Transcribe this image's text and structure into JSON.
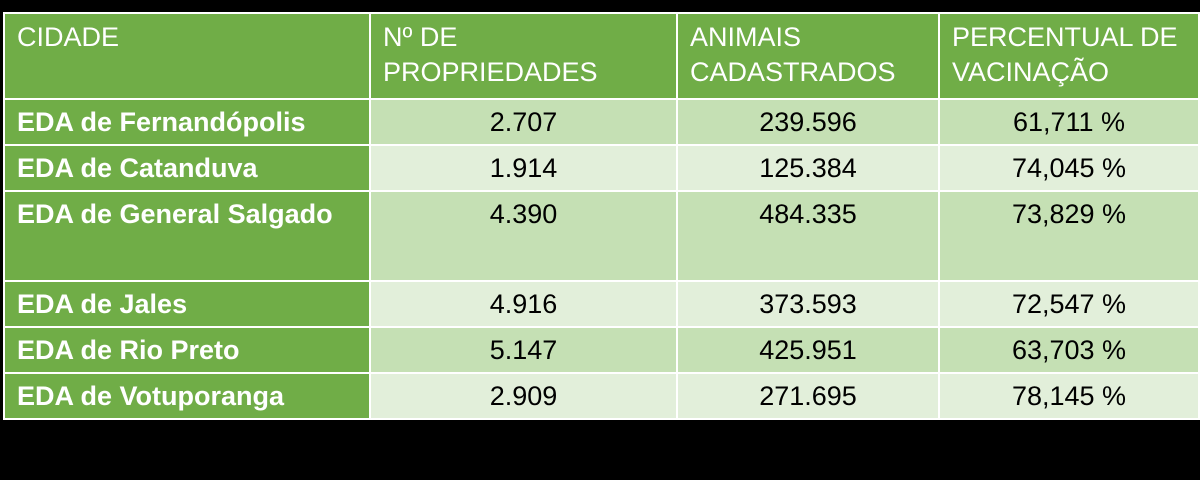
{
  "table": {
    "headers": {
      "city": "CIDADE",
      "properties": "Nº DE PROPRIEDADES",
      "animals": "ANIMAIS CADASTRADOS",
      "vaccination": "PERCENTUAL DE VACINAÇÃO"
    },
    "rows": [
      {
        "city": "EDA de Fernandópolis",
        "properties": "2.707",
        "animals": "239.596",
        "vaccination": "61,711 %"
      },
      {
        "city": "EDA de Catanduva",
        "properties": "1.914",
        "animals": "125.384",
        "vaccination": "74,045 %"
      },
      {
        "city": "EDA de General Salgado",
        "properties": "4.390",
        "animals": "484.335",
        "vaccination": "73,829 %"
      },
      {
        "city": "EDA de Jales",
        "properties": "4.916",
        "animals": "373.593",
        "vaccination": "72,547 %"
      },
      {
        "city": "EDA de Rio Preto",
        "properties": "5.147",
        "animals": "425.951",
        "vaccination": "63,703 %"
      },
      {
        "city": "EDA de Votuporanga",
        "properties": "2.909",
        "animals": "271.695",
        "vaccination": "78,145 %"
      }
    ]
  },
  "colors": {
    "header_green": "#70ad47",
    "band_dark": "#c5e0b4",
    "band_light": "#e2efda",
    "background": "#000000"
  }
}
